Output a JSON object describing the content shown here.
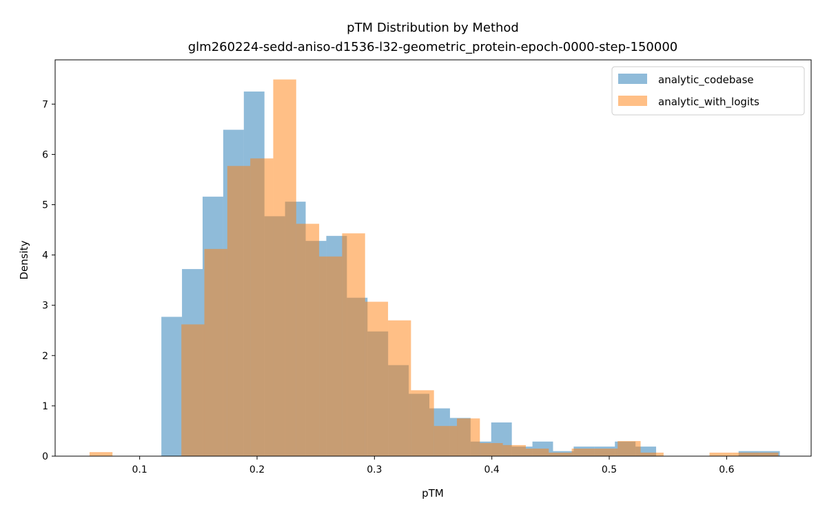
{
  "chart_data": {
    "type": "histogram",
    "title": "pTM Distribution by Method",
    "subtitle": "glm260224-sedd-aniso-d1536-l32-geometric_protein-epoch-0000-step-150000",
    "xlabel": "pTM",
    "ylabel": "Density",
    "xlim": [
      0.028,
      0.672
    ],
    "ylim": [
      0,
      7.88
    ],
    "xticks": [
      "0.1",
      "0.2",
      "0.3",
      "0.4",
      "0.5",
      "0.6"
    ],
    "xtick_values": [
      0.1,
      0.2,
      0.3,
      0.4,
      0.5,
      0.6
    ],
    "yticks": [
      "0",
      "1",
      "2",
      "3",
      "4",
      "5",
      "6",
      "7"
    ],
    "ytick_values": [
      0,
      1,
      2,
      3,
      4,
      5,
      6,
      7
    ],
    "legend_position": "top-right",
    "series": [
      {
        "name": "analytic_codebase",
        "color": "#1f77b4",
        "opacity": 0.5,
        "bin_start": 0.1185,
        "bin_width": 0.01756,
        "values": [
          2.77,
          3.72,
          5.16,
          6.49,
          7.25,
          4.77,
          5.06,
          4.28,
          4.38,
          3.15,
          2.48,
          1.81,
          1.24,
          0.95,
          0.76,
          0.29,
          0.67,
          0.19,
          0.29,
          0.1,
          0.19,
          0.19,
          0.29,
          0.19,
          0,
          0,
          0,
          0,
          0.1,
          0.1
        ]
      },
      {
        "name": "analytic_with_logits",
        "color": "#ff7f0e",
        "opacity": 0.5,
        "bin_start": 0.0573,
        "bin_width": 0.01956,
        "values": [
          0.08,
          0,
          0,
          0,
          2.62,
          4.12,
          5.77,
          5.92,
          7.49,
          4.62,
          3.97,
          4.43,
          3.07,
          2.7,
          1.31,
          0.6,
          0.75,
          0.26,
          0.22,
          0.15,
          0.07,
          0.15,
          0.15,
          0.3,
          0.07,
          0,
          0,
          0.07,
          0.07,
          0.07
        ]
      }
    ]
  }
}
